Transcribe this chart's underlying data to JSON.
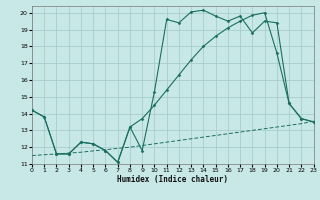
{
  "xlabel": "Humidex (Indice chaleur)",
  "xlim": [
    0,
    23
  ],
  "ylim": [
    11,
    20.4
  ],
  "yticks": [
    11,
    12,
    13,
    14,
    15,
    16,
    17,
    18,
    19,
    20
  ],
  "xticks": [
    0,
    1,
    2,
    3,
    4,
    5,
    6,
    7,
    8,
    9,
    10,
    11,
    12,
    13,
    14,
    15,
    16,
    17,
    18,
    19,
    20,
    21,
    22,
    23
  ],
  "bg_color": "#c8e8e8",
  "grid_color": "#a8cccc",
  "line_color": "#1a6e60",
  "line1_x": [
    0,
    1,
    2,
    3,
    4,
    5,
    6,
    7,
    8,
    9,
    10,
    11,
    12,
    13,
    14,
    15,
    16,
    17,
    18,
    19,
    20,
    21,
    22,
    23
  ],
  "line1_y": [
    14.2,
    13.8,
    11.6,
    11.6,
    12.3,
    12.2,
    11.8,
    11.1,
    13.2,
    11.8,
    15.3,
    19.6,
    19.4,
    20.05,
    20.15,
    19.8,
    19.5,
    19.8,
    18.8,
    19.5,
    19.4,
    14.6,
    13.7,
    13.5
  ],
  "line2_x": [
    0,
    1,
    2,
    3,
    4,
    5,
    6,
    7,
    8,
    9,
    10,
    11,
    12,
    13,
    14,
    15,
    16,
    17,
    18,
    19,
    20,
    21,
    22,
    23
  ],
  "line2_y": [
    14.2,
    13.8,
    11.6,
    11.6,
    12.3,
    12.2,
    11.8,
    11.1,
    13.2,
    13.7,
    14.5,
    15.4,
    16.3,
    17.2,
    18.0,
    18.6,
    19.1,
    19.5,
    19.85,
    20.0,
    17.6,
    14.6,
    13.7,
    13.5
  ],
  "line3_x": [
    0,
    1,
    2,
    3,
    4,
    5,
    6,
    7,
    8,
    9,
    10,
    11,
    12,
    13,
    14,
    15,
    16,
    17,
    18,
    19,
    20,
    21,
    22,
    23
  ],
  "line3_y": [
    11.5,
    11.55,
    11.6,
    11.65,
    11.7,
    11.78,
    11.85,
    11.93,
    12.0,
    12.1,
    12.2,
    12.3,
    12.4,
    12.5,
    12.6,
    12.7,
    12.8,
    12.9,
    13.0,
    13.1,
    13.2,
    13.3,
    13.4,
    13.55
  ]
}
